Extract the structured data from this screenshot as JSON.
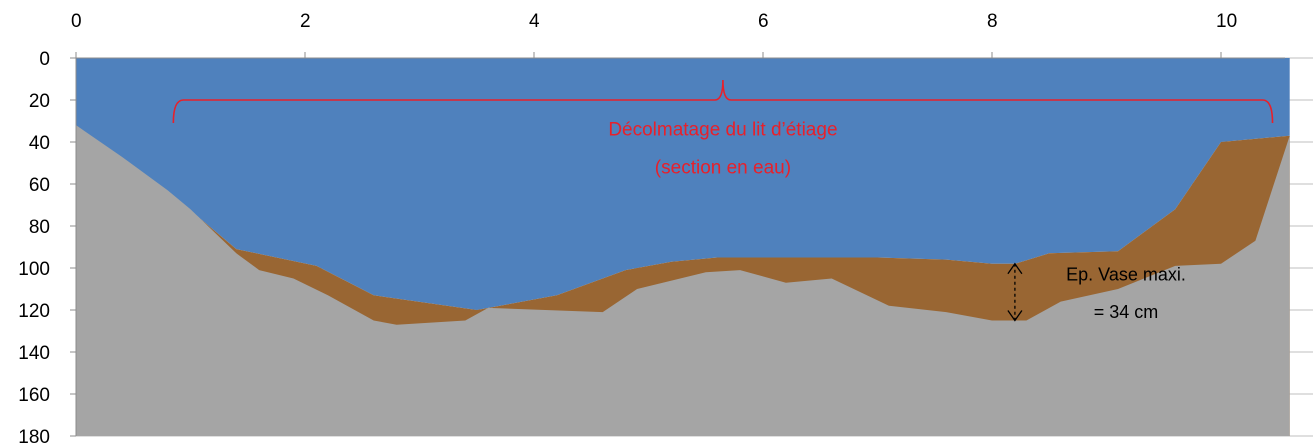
{
  "chart_data": {
    "type": "area",
    "title": "",
    "xlabel": "",
    "ylabel": "",
    "xlim": [
      0,
      10.6
    ],
    "ylim": [
      0,
      180
    ],
    "y_inverted": true,
    "x_axis_position": "top",
    "x_ticks": [
      "0",
      "2",
      "4",
      "6",
      "8",
      "10"
    ],
    "y_ticks": [
      "0",
      "20",
      "40",
      "60",
      "80",
      "100",
      "120",
      "140",
      "160",
      "180"
    ],
    "grid": "horizontal",
    "colors": {
      "water": "#4f81bd",
      "mud": "#996633",
      "ground": "#a5a5a5",
      "annotation": "#e8202a"
    },
    "series": [
      {
        "name": "",
        "role": "water-surface",
        "x": [
          0,
          10.6
        ],
        "values": [
          0,
          0
        ]
      },
      {
        "name": "",
        "role": "mud-top",
        "x": [
          0,
          0.9,
          1.4,
          2.1,
          2.6,
          3.5,
          4.2,
          4.8,
          5.2,
          5.6,
          6.0,
          6.4,
          7.0,
          7.6,
          8.0,
          8.2,
          8.5,
          9.1,
          9.6,
          10.0,
          10.6
        ],
        "values": [
          32,
          68,
          91,
          99,
          113,
          120,
          113,
          101,
          97,
          95,
          95,
          95,
          95,
          96,
          98,
          98,
          93,
          92,
          72,
          40,
          37
        ]
      },
      {
        "name": "",
        "role": "ground",
        "x": [
          0,
          0.4,
          0.8,
          1.0,
          1.4,
          1.6,
          1.9,
          2.2,
          2.6,
          2.8,
          3.4,
          3.6,
          4.6,
          4.9,
          5.5,
          5.8,
          6.2,
          6.6,
          7.1,
          7.6,
          8.0,
          8.3,
          8.6,
          9.1,
          9.6,
          10.0,
          10.3,
          10.6
        ],
        "values": [
          32,
          47,
          63,
          72,
          93,
          101,
          105,
          113,
          125,
          127,
          125,
          119,
          121,
          110,
          102,
          101,
          107,
          105,
          118,
          121,
          125,
          125,
          116,
          110,
          99,
          98,
          87,
          37
        ]
      }
    ],
    "annotations": {
      "brace_label_line1": "Décolmatage du lit d’étiage",
      "brace_label_line2": "(section en eau)",
      "thickness_label_line1": "Ep. Vase maxi.",
      "thickness_label_line2": "= 34 cm"
    },
    "brace": {
      "x_start": 0.85,
      "x_end": 10.45,
      "x_tip": 5.65,
      "y": 20
    },
    "thickness_marker": {
      "x": 8.2,
      "y_top": 98,
      "y_bottom": 125
    }
  }
}
